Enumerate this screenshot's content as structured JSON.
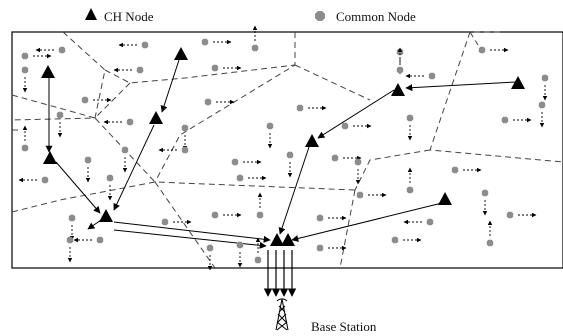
{
  "legend": {
    "ch_label": "CH Node",
    "common_label": "Common Node"
  },
  "base_station": {
    "label": "Base Station"
  },
  "icons": {
    "ch_node": "filled-black-triangle",
    "common_node": "grey-octagon-dot",
    "base_station": "antenna-tower"
  },
  "colors": {
    "ch_node": "#000000",
    "common_node": "#8c8c8c",
    "boundary": "#000000",
    "region_border": "#444444"
  },
  "counts": {
    "ch_nodes": 11
  }
}
